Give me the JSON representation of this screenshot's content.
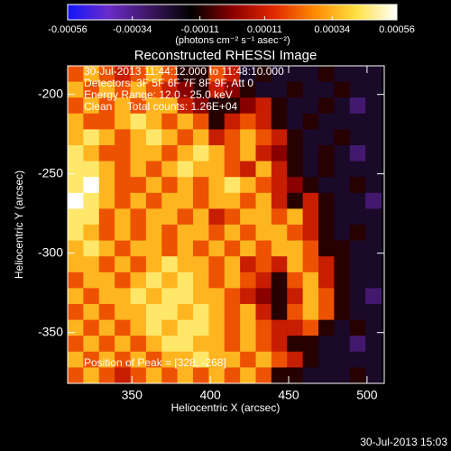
{
  "chart_data": {
    "type": "heatmap",
    "title": "Reconstructed RHESSI Image",
    "xlabel": "Heliocentric X (arcsec)",
    "ylabel": "Heliocentric Y (arcsec)",
    "colorbar_label": "(photons cm⁻² s⁻¹ asec⁻²)",
    "annotations": [
      "30-Jul-2013 11:44:12.000 to 11:48:10.000",
      "Detectors: 3F 5F 6F 7F 8F 9F, Att 0",
      "Energy Range: 12.0 - 25.0 keV",
      "Clean     Total counts: 1.26E+04"
    ],
    "peak_label": "Position of Peak = [328, -268]",
    "timestamp": "30-Jul-2013 15:03",
    "xlim": [
      309,
      511
    ],
    "ylim": [
      -382,
      -182
    ],
    "xticks": [
      350,
      400,
      450,
      500
    ],
    "yticks": [
      -200,
      -250,
      -300,
      -350
    ],
    "clim": [
      -0.00056,
      0.00056
    ],
    "cticks": [
      -0.00056,
      -0.00034,
      -0.00011,
      0.00011,
      0.00034,
      0.00056
    ],
    "colormap": [
      "#1414ff",
      "#6a2cc8",
      "#3c1660",
      "#000000",
      "#8a0000",
      "#e02800",
      "#ff8a00",
      "#ffe040",
      "#ffffff"
    ],
    "x": [
      314,
      324,
      334,
      344,
      354,
      364,
      374,
      384,
      394,
      404,
      414,
      424,
      434,
      444,
      454,
      464,
      474,
      484,
      494,
      504
    ],
    "y": [
      -187,
      -197,
      -207,
      -217,
      -227,
      -237,
      -247,
      -257,
      -267,
      -277,
      -287,
      -297,
      -307,
      -317,
      -327,
      -337,
      -347,
      -357,
      -367,
      -377
    ],
    "z": [
      [
        0.0002,
        0.00035,
        0.0002,
        0.0001,
        0.0002,
        0.00035,
        0.0002,
        -0.0001,
        -0.0001,
        0.0002,
        0.0001,
        -0.0002,
        -0.0001,
        -0.0002,
        -0.0002,
        -0.0002,
        -0.0001,
        -0.0002,
        -0.0002,
        -0.0002
      ],
      [
        0.00035,
        0.0002,
        0.00035,
        0.0002,
        0.00035,
        0.0002,
        0.0001,
        0,
        -0.0001,
        0.0001,
        0,
        -0.0001,
        -0.0002,
        -0.0002,
        -0.0001,
        -0.0002,
        -0.0002,
        -0.0001,
        -0.0002,
        -0.0002
      ],
      [
        0.0002,
        0.00035,
        0.0002,
        0.00035,
        0.0002,
        0.00035,
        0.00035,
        0.0001,
        0,
        -0.0001,
        -0.0001,
        0,
        0.0001,
        -0.0001,
        -0.0002,
        -0.0002,
        -0.0001,
        -0.0002,
        -0.0003,
        -0.0002
      ],
      [
        0.00035,
        0.0002,
        0.0002,
        0.00035,
        0.00045,
        0.00035,
        0.0002,
        0.00035,
        0.0002,
        -0.0001,
        0.0001,
        0.0002,
        0.0001,
        -0.0001,
        -0.0002,
        -0.0001,
        -0.0002,
        -0.0002,
        -0.0002,
        -0.0002
      ],
      [
        0.00035,
        0.00045,
        0.00035,
        0.0002,
        0.00035,
        0.00045,
        0.00035,
        0.0002,
        0.00035,
        0.0001,
        0.0002,
        0.00035,
        0.0002,
        0.0001,
        -0.0001,
        -0.0002,
        -0.0002,
        -0.0001,
        -0.0002,
        -0.0002
      ],
      [
        0.00045,
        0.00035,
        0.0002,
        0.0002,
        0.00035,
        0.00035,
        0.0002,
        0.00035,
        0.00045,
        0.00035,
        0.0002,
        0.00035,
        0.0001,
        0,
        -0.0001,
        -0.0002,
        -0.0001,
        -0.0002,
        -0.0003,
        -0.0002
      ],
      [
        0.00045,
        0.00045,
        0.00035,
        0.0002,
        0.00035,
        0.0002,
        0.00035,
        0.00045,
        0.00035,
        0.00035,
        0.0002,
        0.0001,
        0.00035,
        0.0001,
        -0.0001,
        -0.0002,
        -0.0001,
        -0.0002,
        -0.0002,
        -0.0002
      ],
      [
        0.00045,
        0.00056,
        0.00035,
        0.0002,
        0.0002,
        0.00035,
        0.0002,
        0.00035,
        0.0002,
        0.00035,
        0.00045,
        0.00035,
        0.0002,
        0.0001,
        0,
        -0.0001,
        -0.0002,
        -0.0002,
        -0.0001,
        -0.0002
      ],
      [
        0.00056,
        0.00045,
        0.00035,
        0.0002,
        0.00035,
        0.0002,
        0.00035,
        0.00035,
        0.0002,
        0.00035,
        0.00035,
        0.0002,
        0.00035,
        0.0001,
        -0.0001,
        0.0001,
        -0.0001,
        -0.0002,
        -0.0002,
        -0.0003
      ],
      [
        0.00045,
        0.00045,
        0.0002,
        0.00035,
        0.0002,
        0.00035,
        0.00035,
        0.0002,
        0.00035,
        0.0001,
        0.0002,
        0.00035,
        0.00035,
        0.0002,
        0.00035,
        0.0001,
        -0.0001,
        -0.0002,
        -0.0002,
        -0.0002
      ],
      [
        0.00045,
        0.00035,
        0.0002,
        0.00035,
        0.0002,
        0.00035,
        0.0002,
        0.00035,
        0.00035,
        0.0002,
        0.00035,
        0.0002,
        0.00035,
        0.00035,
        0.0002,
        0.0001,
        -0.0001,
        -0.0002,
        -0.0001,
        -0.0002
      ],
      [
        0.00035,
        0.00045,
        0.00035,
        0.0002,
        0.00035,
        0.00035,
        0.0002,
        0.00035,
        0.0002,
        0.00035,
        0.0002,
        0.00035,
        0.0002,
        0.00035,
        0.00035,
        0.0002,
        -0.0001,
        -0.0001,
        -0.0002,
        -0.0002
      ],
      [
        0.00035,
        0.00035,
        0.0002,
        0.00035,
        0.0002,
        0.00035,
        0.00045,
        0.00035,
        0.00035,
        0.0002,
        0.00035,
        0.0001,
        0.0002,
        0.0001,
        0.00035,
        0.0002,
        0.0001,
        -0.0001,
        -0.0002,
        -0.0002
      ],
      [
        0.0002,
        0.00035,
        0.00035,
        0.0002,
        0.00035,
        0.00045,
        0.00035,
        0.00045,
        0.00035,
        0.0002,
        0.00035,
        0.0002,
        0.0001,
        -0.0001,
        0.0002,
        0.00035,
        0.0001,
        -0.0001,
        -0.0002,
        -0.0002
      ],
      [
        0.00035,
        0.0002,
        0.00035,
        0.00035,
        0.00045,
        0.00035,
        0.00045,
        0.00045,
        0.00035,
        0.00035,
        0.0002,
        0.0001,
        0,
        -0.0001,
        0.0001,
        0.00035,
        0.0002,
        -0.0001,
        -0.0002,
        -0.0003
      ],
      [
        0.0002,
        0.00035,
        0.0002,
        0.00035,
        0.00035,
        0.00045,
        0.00045,
        0.00035,
        0.00045,
        0.00035,
        0.0002,
        0.00035,
        0.0001,
        -0.0001,
        0.0002,
        0.00035,
        0.0002,
        -0.0001,
        -0.0002,
        -0.0002
      ],
      [
        0.00035,
        0.0002,
        0.00035,
        0.0002,
        0.00035,
        0.00045,
        0.00035,
        0.00045,
        0.00045,
        0.00035,
        0.0002,
        0.00035,
        0.0002,
        0.0001,
        0.0001,
        0.0002,
        -0.0001,
        -0.0002,
        -0.0001,
        -0.0002
      ],
      [
        0.0002,
        0.00035,
        0.0002,
        0.00035,
        0.0002,
        0.00035,
        0.00045,
        0.00045,
        0.00035,
        0.00035,
        0.0002,
        0.00035,
        0.0002,
        0.0001,
        -0.0001,
        -0.0001,
        -0.0002,
        -0.0002,
        -0.0003,
        -0.0002
      ],
      [
        0.00035,
        0.0002,
        0.00035,
        0.0002,
        0.00035,
        0.0002,
        0.00035,
        0.00035,
        0.00045,
        0.00035,
        0.00035,
        0.0002,
        0.00035,
        0.0002,
        0.0001,
        -0.0001,
        -0.0002,
        -0.0002,
        -0.0002,
        -0.0002
      ],
      [
        0.0002,
        0.00035,
        0.0002,
        0.0001,
        0.0002,
        0.00035,
        0.0002,
        0.00035,
        0.0002,
        0.00035,
        0.0002,
        0.00035,
        0.0002,
        -0.0001,
        -0.0001,
        -0.0002,
        -0.0002,
        -0.0002,
        -0.0001,
        -0.0002
      ]
    ]
  }
}
